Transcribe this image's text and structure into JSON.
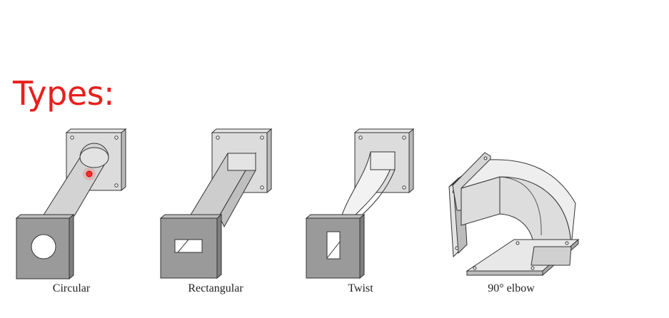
{
  "slide": {
    "title": "Types:"
  },
  "waveguides": [
    {
      "name": "circular",
      "label": "Circular"
    },
    {
      "name": "rectangular",
      "label": "Rectangular"
    },
    {
      "name": "twist",
      "label": "Twist"
    },
    {
      "name": "elbow",
      "label": "90° elbow"
    }
  ],
  "colors": {
    "title": "#e8201c",
    "flange_face": "#9a9a9a",
    "flange_light": "#dcdcdc",
    "guide_body": "#cfcfcf",
    "cursor": "#ff2a2a"
  }
}
